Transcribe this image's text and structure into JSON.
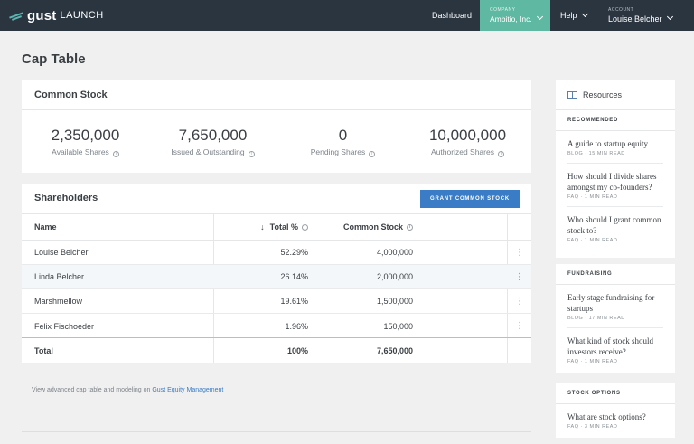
{
  "brand": {
    "name": "gust",
    "product": "LAUNCH"
  },
  "nav": {
    "dashboard": "Dashboard",
    "company": {
      "label": "COMPANY",
      "value": "Ambitio, Inc."
    },
    "help": "Help",
    "account": {
      "label": "ACCOUNT",
      "value": "Louise Belcher"
    }
  },
  "page": {
    "title": "Cap Table"
  },
  "common_stock": {
    "title": "Common Stock",
    "stats": [
      {
        "value": "2,350,000",
        "label": "Available Shares"
      },
      {
        "value": "7,650,000",
        "label": "Issued & Outstanding"
      },
      {
        "value": "0",
        "label": "Pending Shares"
      },
      {
        "value": "10,000,000",
        "label": "Authorized Shares"
      }
    ]
  },
  "shareholders": {
    "title": "Shareholders",
    "grant_button": "GRANT COMMON STOCK",
    "columns": {
      "name": "Name",
      "total_pct": "Total %",
      "common_stock": "Common Stock"
    },
    "rows": [
      {
        "name": "Louise Belcher",
        "pct": "52.29%",
        "shares": "4,000,000"
      },
      {
        "name": "Linda Belcher",
        "pct": "26.14%",
        "shares": "2,000,000"
      },
      {
        "name": "Marshmellow",
        "pct": "19.61%",
        "shares": "1,500,000"
      },
      {
        "name": "Felix Fischoeder",
        "pct": "1.96%",
        "shares": "150,000"
      }
    ],
    "total": {
      "name": "Total",
      "pct": "100%",
      "shares": "7,650,000"
    }
  },
  "footer": {
    "text": "View advanced cap table and modeling on ",
    "link": "Gust Equity Management"
  },
  "resources": {
    "title": "Resources",
    "recommended": {
      "label": "RECOMMENDED",
      "items": [
        {
          "title": "A guide to startup equity",
          "meta": "BLOG · 15 MIN READ"
        },
        {
          "title": "How should I divide shares amongst my co-founders?",
          "meta": "FAQ · 1 MIN READ"
        },
        {
          "title": "Who should I grant common stock to?",
          "meta": "FAQ · 1 MIN READ"
        }
      ]
    },
    "fundraising": {
      "label": "FUNDRAISING",
      "items": [
        {
          "title": "Early stage fundraising for startups",
          "meta": "BLOG · 17 MIN READ"
        },
        {
          "title": "What kind of stock should investors receive?",
          "meta": "FAQ · 1 MIN READ"
        }
      ]
    },
    "stock_options": {
      "label": "STOCK OPTIONS",
      "items": [
        {
          "title": "What are stock options?",
          "meta": "FAQ · 3 MIN READ"
        }
      ]
    }
  },
  "icons": {
    "info": "info-circle-icon",
    "sort": "arrow-down-icon",
    "row_menu": "kebab-menu-icon",
    "resources": "book-icon",
    "dropdown": "chevron-down-icon"
  },
  "colors": {
    "topbar": "#2b3540",
    "company_tab": "#5fb8a1",
    "accent": "#3a7cc5"
  }
}
